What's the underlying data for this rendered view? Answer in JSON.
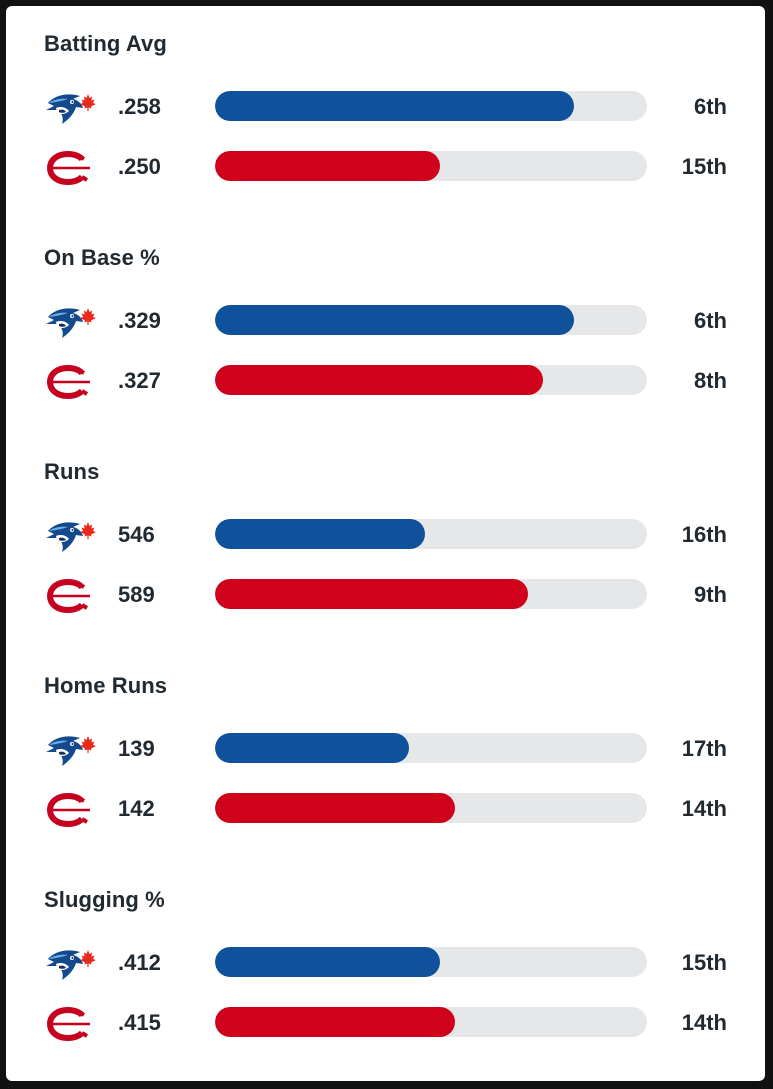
{
  "teams": [
    {
      "key": "blue-jays",
      "color": "#0f519b",
      "icon": "blue-jays-logo-icon"
    },
    {
      "key": "reds",
      "color": "#d0021b",
      "icon": "reds-logo-icon"
    }
  ],
  "chart_data": {
    "type": "bar",
    "orientation": "horizontal",
    "stats": [
      {
        "title": "Batting Avg",
        "rows": [
          {
            "team": "blue-jays",
            "value": ".258",
            "rank": "6th",
            "fill": 0.83
          },
          {
            "team": "reds",
            "value": ".250",
            "rank": "15th",
            "fill": 0.52
          }
        ]
      },
      {
        "title": "On Base %",
        "rows": [
          {
            "team": "blue-jays",
            "value": ".329",
            "rank": "6th",
            "fill": 0.83
          },
          {
            "team": "reds",
            "value": ".327",
            "rank": "8th",
            "fill": 0.76
          }
        ]
      },
      {
        "title": "Runs",
        "rows": [
          {
            "team": "blue-jays",
            "value": "546",
            "rank": "16th",
            "fill": 0.485
          },
          {
            "team": "reds",
            "value": "589",
            "rank": "9th",
            "fill": 0.725
          }
        ]
      },
      {
        "title": "Home Runs",
        "rows": [
          {
            "team": "blue-jays",
            "value": "139",
            "rank": "17th",
            "fill": 0.45
          },
          {
            "team": "reds",
            "value": "142",
            "rank": "14th",
            "fill": 0.555
          }
        ]
      },
      {
        "title": "Slugging %",
        "rows": [
          {
            "team": "blue-jays",
            "value": ".412",
            "rank": "15th",
            "fill": 0.52
          },
          {
            "team": "reds",
            "value": ".415",
            "rank": "14th",
            "fill": 0.555
          }
        ]
      }
    ]
  }
}
